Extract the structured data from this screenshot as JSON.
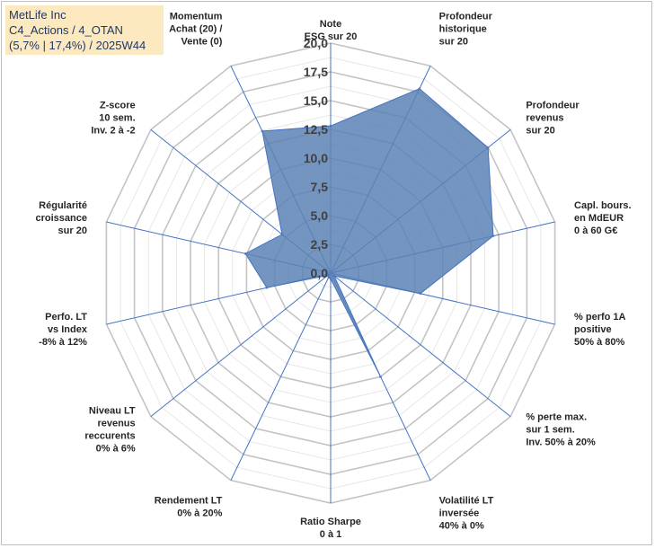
{
  "header": {
    "line1": "MetLife Inc",
    "line2": "C4_Actions / 4_OTAN",
    "line3": "(5,7% | 17,4%) / 2025W44"
  },
  "chart_data": {
    "type": "radar",
    "title": "MetLife Inc",
    "rlim": [
      0,
      20
    ],
    "ticks": [
      {
        "value": 0,
        "label": "0,0"
      },
      {
        "value": 2.5,
        "label": "2,5"
      },
      {
        "value": 5,
        "label": "5,0"
      },
      {
        "value": 7.5,
        "label": "7,5"
      },
      {
        "value": 10,
        "label": "10,0"
      },
      {
        "value": 12.5,
        "label": "12,5"
      },
      {
        "value": 15,
        "label": "15,0"
      },
      {
        "value": 17.5,
        "label": "17,5"
      },
      {
        "value": 20,
        "label": "20,0"
      }
    ],
    "axes": [
      {
        "label": [
          "Note",
          "ESG sur 20"
        ],
        "value": 12.8
      },
      {
        "label": [
          "Profondeur",
          "historique",
          "sur 20"
        ],
        "value": 17.8
      },
      {
        "label": [
          "Profondeur",
          "revenus",
          "sur 20"
        ],
        "value": 17.5
      },
      {
        "label": [
          "Capl. bours.",
          "en MdEUR",
          "0 à 60 G€"
        ],
        "value": 14.5
      },
      {
        "label": [
          "% perfo 1A",
          "positive",
          "50% à 80%"
        ],
        "value": 8.0
      },
      {
        "label": [
          "% perte max.",
          "sur 1 sem.",
          "Inv. 50% à 20%"
        ],
        "value": 0.4
      },
      {
        "label": [
          "Volatilité LT",
          "inversée",
          "40% à 0%"
        ],
        "value": 10.0
      },
      {
        "label": [
          "Ratio Sharpe",
          "0 à 1"
        ],
        "value": 0.5
      },
      {
        "label": [
          "Rendement LT",
          "0% à 20%"
        ],
        "value": 0.4
      },
      {
        "label": [
          "Niveau LT",
          "revenus",
          "reccurents",
          "0% à 6%"
        ],
        "value": 0.3
      },
      {
        "label": [
          "Perfo. LT",
          "vs Index",
          "-8% à 12%"
        ],
        "value": 5.7
      },
      {
        "label": [
          "Régularité",
          "croissance",
          "sur 20"
        ],
        "value": 7.6
      },
      {
        "label": [
          "Z-score",
          "10 sem.",
          "Inv. 2 à -2"
        ],
        "value": 5.4
      },
      {
        "label": [
          "Momentum",
          "Achat (20) /",
          "Vente (0)"
        ],
        "value": 13.7
      }
    ],
    "colors": {
      "fill": "#5b82b5",
      "stroke": "#4472c4",
      "grid": "#c8c8c8",
      "axis": "#4472c4"
    }
  }
}
